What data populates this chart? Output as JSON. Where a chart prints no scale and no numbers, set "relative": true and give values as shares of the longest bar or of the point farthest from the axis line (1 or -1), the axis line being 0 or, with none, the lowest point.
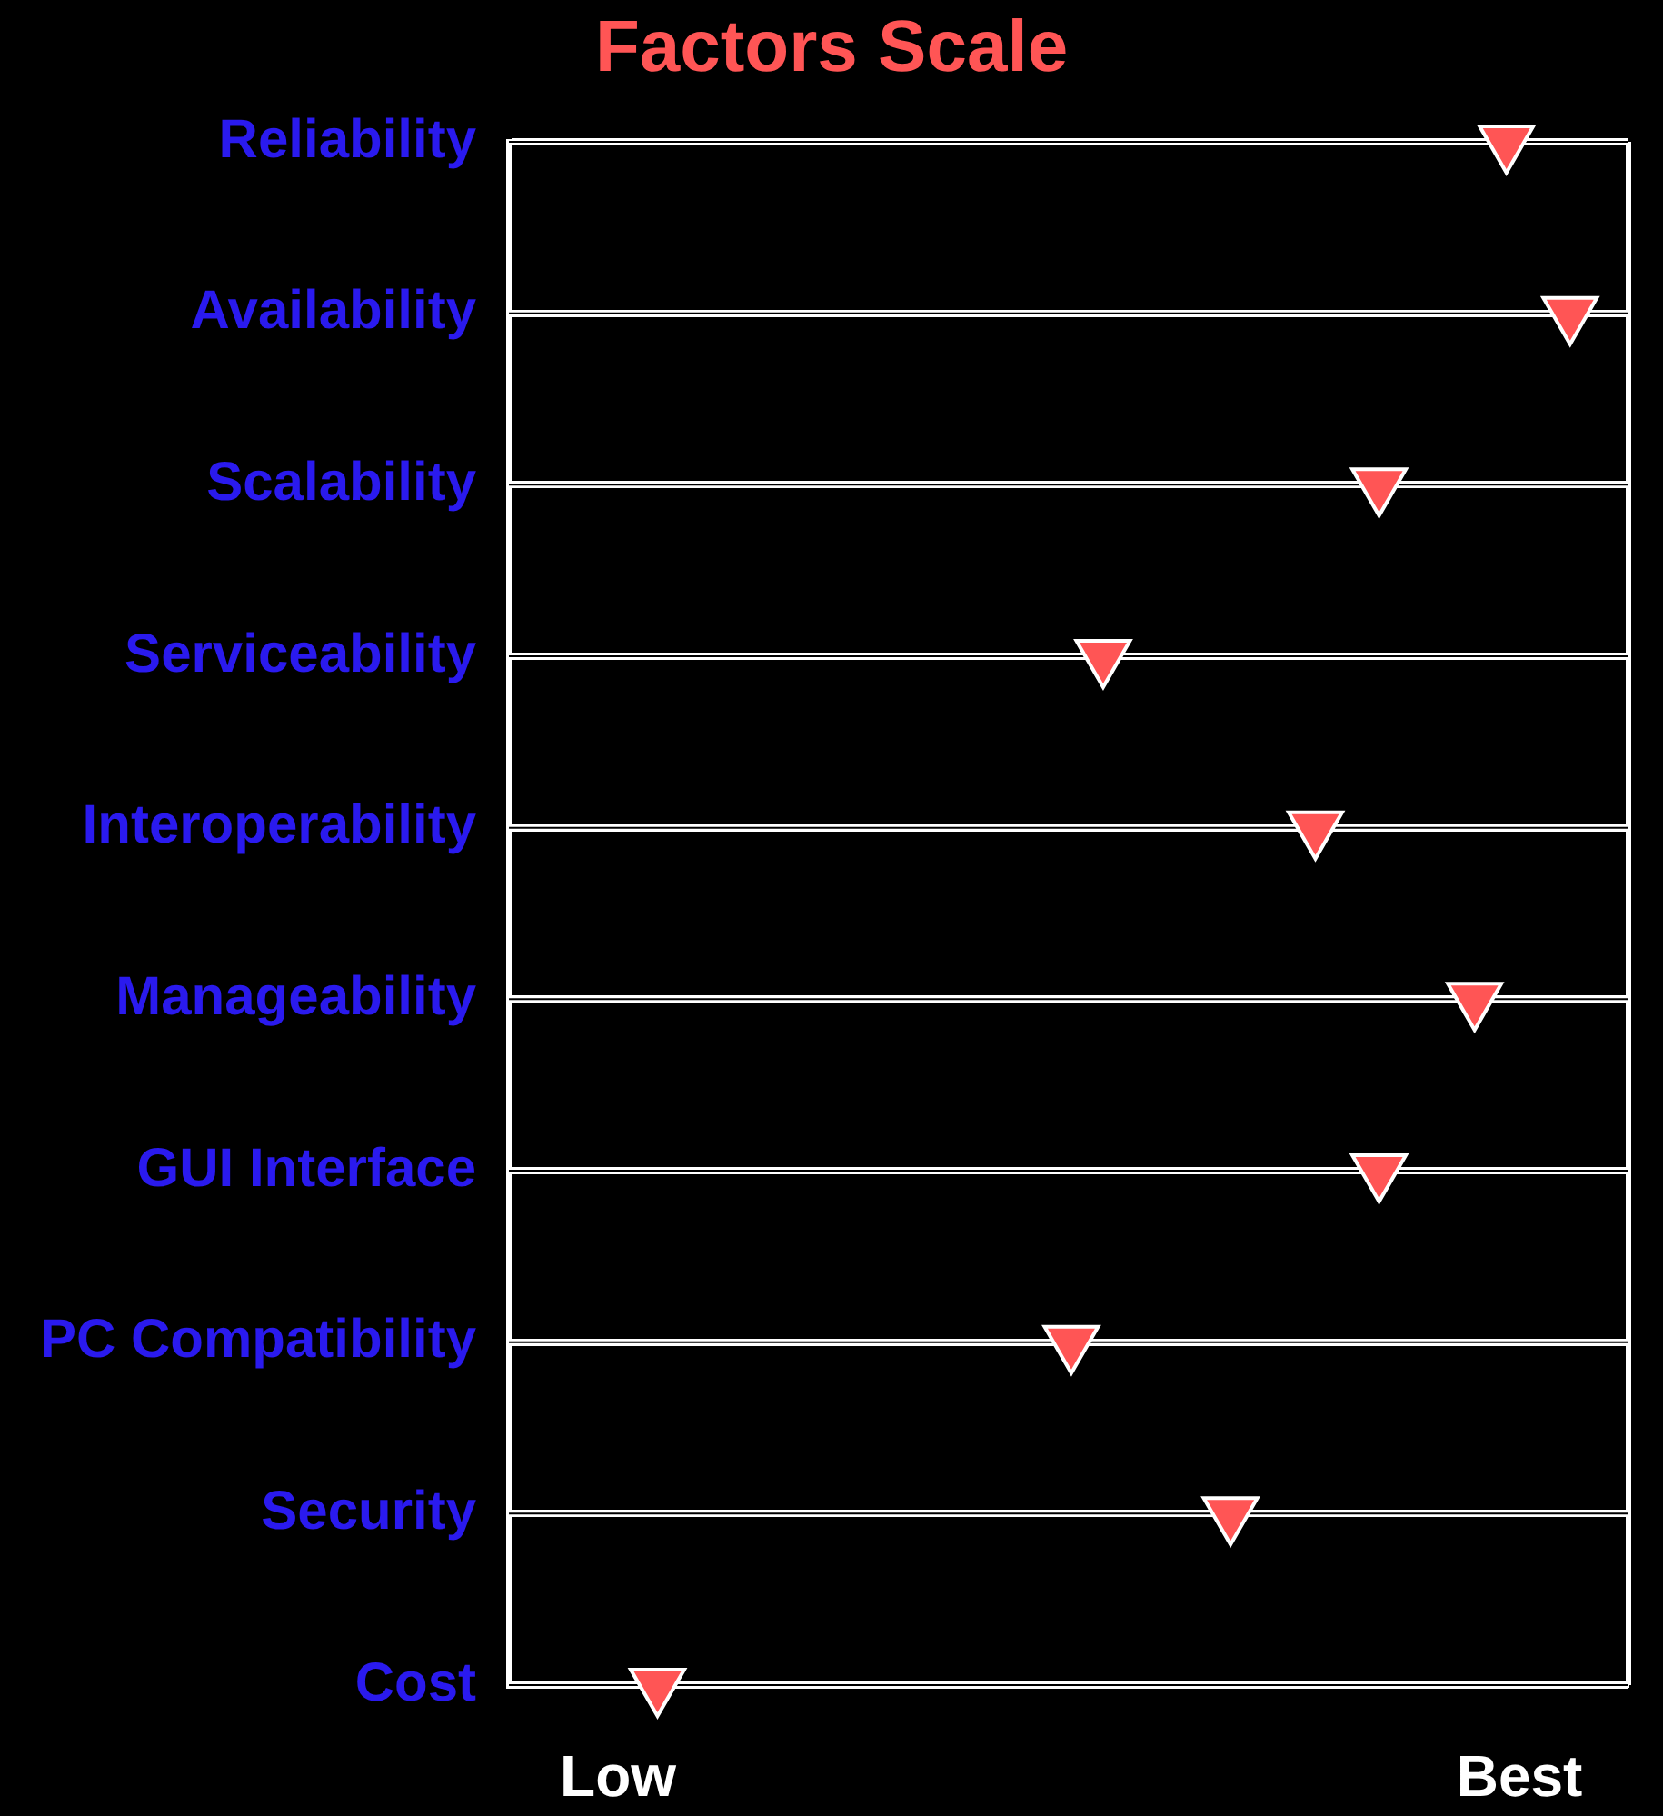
{
  "chart_data": {
    "type": "scatter",
    "title": "Factors Scale",
    "orientation": "horizontal",
    "relative": true,
    "categories": [
      "Reliability",
      "Availability",
      "Scalability",
      "Serviceability",
      "Interoperability",
      "Manageability",
      "GUI Interface",
      "PC Compatibility",
      "Security",
      "Cost"
    ],
    "values": [
      0.94,
      1,
      0.82,
      0.56,
      0.76,
      0.91,
      0.82,
      0.53,
      0.68,
      0.14
    ],
    "color": "#ff5555",
    "annotations": [
      "Low",
      "Best"
    ],
    "grid": "y",
    "marker": "triangle"
  }
}
